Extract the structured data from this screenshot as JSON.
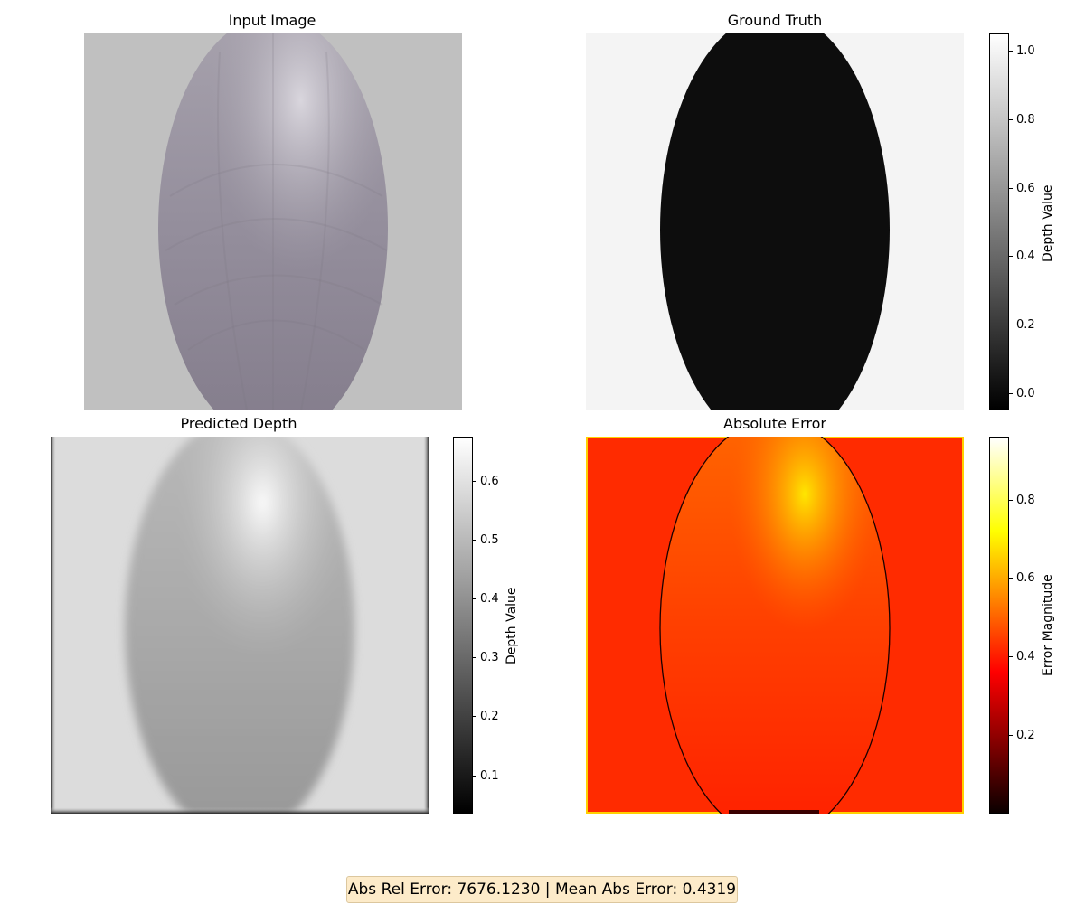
{
  "chart_data": [
    {
      "type": "heatmap",
      "title": "Input Image",
      "content": "RGB render of a faceted grey-purple ellipsoid on a light grey background",
      "colors": {
        "background": "#c0c0c0",
        "object": "#9c97a3",
        "highlight": "#dcdae0"
      }
    },
    {
      "type": "heatmap",
      "title": "Ground Truth",
      "colormap": "gray",
      "colorbar": {
        "label": "Depth Value",
        "vmin": -0.05,
        "vmax": 1.05,
        "ticks": [
          0.0,
          0.2,
          0.4,
          0.6,
          0.8,
          1.0
        ]
      },
      "values": {
        "background": 0.95,
        "object": 0.0
      }
    },
    {
      "type": "heatmap",
      "title": "Predicted Depth",
      "colormap": "gray",
      "colorbar": {
        "label": "Depth Value",
        "vmin": 0.035,
        "vmax": 0.675,
        "ticks": [
          0.1,
          0.2,
          0.3,
          0.4,
          0.5,
          0.6
        ]
      },
      "values": {
        "background": 0.58,
        "object_min": 0.42,
        "object_max": 0.67
      }
    },
    {
      "type": "heatmap",
      "title": "Absolute Error",
      "colormap": "hot",
      "colorbar": {
        "label": "Error Magnitude",
        "vmin": 0.0,
        "vmax": 0.96,
        "ticks": [
          0.2,
          0.4,
          0.6,
          0.8
        ]
      },
      "values": {
        "background": 0.45,
        "object_min": 0.42,
        "object_max": 0.67
      }
    }
  ],
  "summary": "Abs Rel Error: 7676.1230 | Mean Abs Error: 0.4319"
}
